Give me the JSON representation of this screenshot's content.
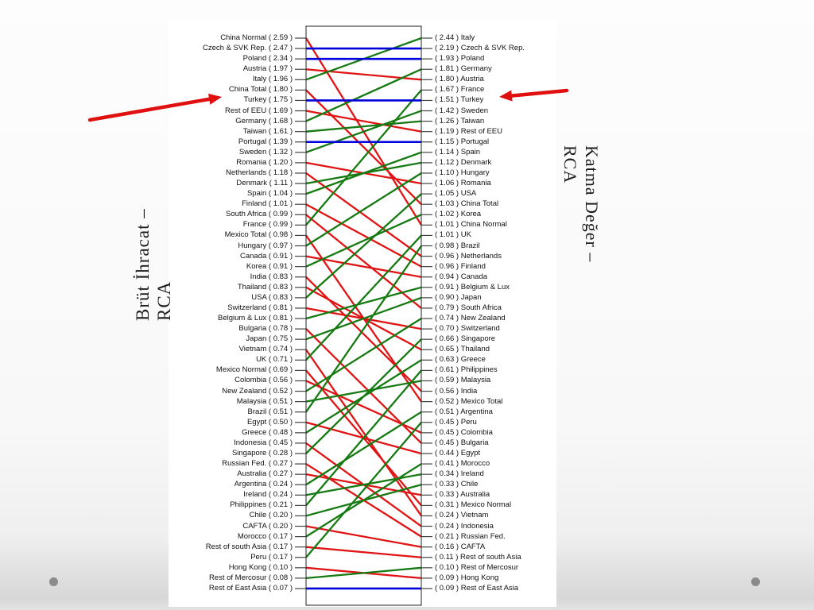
{
  "slide": {
    "left_axis_title": {
      "line1": "Brüt İhracat –",
      "line2": "RCA"
    },
    "right_axis_title": {
      "line1": "Katma Değer –",
      "line2": "RCA"
    }
  },
  "annotations": {
    "left_arrow_target": "Turkey ( 1.75 )",
    "right_arrow_target": "( 1.51 ) Turkey",
    "arrow_color": "#e01010"
  },
  "chart_data": {
    "type": "slopegraph",
    "left_axis_label": "Brüt İhracat – RCA",
    "right_axis_label": "Katma Değer – RCA",
    "left_label_format": "name ( value )",
    "right_label_format": "( value ) name",
    "colors": {
      "improved": "#157a12",
      "declined": "#e01414",
      "unchanged": "#0000dd"
    },
    "left": [
      {
        "name": "China Normal",
        "value": "2.59"
      },
      {
        "name": "Czech & SVK Rep.",
        "value": "2.47"
      },
      {
        "name": "Poland",
        "value": "2.34"
      },
      {
        "name": "Austria",
        "value": "1.97"
      },
      {
        "name": "Italy",
        "value": "1.96"
      },
      {
        "name": "China Total",
        "value": "1.80"
      },
      {
        "name": "Turkey",
        "value": "1.75"
      },
      {
        "name": "Rest of EEU",
        "value": "1.69"
      },
      {
        "name": "Germany",
        "value": "1.68"
      },
      {
        "name": "Taiwan",
        "value": "1.61"
      },
      {
        "name": "Portugal",
        "value": "1.39"
      },
      {
        "name": "Sweden",
        "value": "1.32"
      },
      {
        "name": "Romania",
        "value": "1.20"
      },
      {
        "name": "Netherlands",
        "value": "1.18"
      },
      {
        "name": "Denmark",
        "value": "1.11"
      },
      {
        "name": "Spain",
        "value": "1.04"
      },
      {
        "name": "Finland",
        "value": "1.01"
      },
      {
        "name": "South Africa",
        "value": "0.99"
      },
      {
        "name": "France",
        "value": "0.99"
      },
      {
        "name": "Mexico Total",
        "value": "0.98"
      },
      {
        "name": "Hungary",
        "value": "0.97"
      },
      {
        "name": "Canada",
        "value": "0.91"
      },
      {
        "name": "Korea",
        "value": "0.91"
      },
      {
        "name": "India",
        "value": "0.83"
      },
      {
        "name": "Thailand",
        "value": "0.83"
      },
      {
        "name": "USA",
        "value": "0.83"
      },
      {
        "name": "Switzerland",
        "value": "0.81"
      },
      {
        "name": "Belgium & Lux",
        "value": "0.81"
      },
      {
        "name": "Bulgaria",
        "value": "0.78"
      },
      {
        "name": "Japan",
        "value": "0.75"
      },
      {
        "name": "Vietnam",
        "value": "0.74"
      },
      {
        "name": "UK",
        "value": "0.71"
      },
      {
        "name": "Mexico Normal",
        "value": "0.69"
      },
      {
        "name": "Colombia",
        "value": "0.56"
      },
      {
        "name": "New Zealand",
        "value": "0.52"
      },
      {
        "name": "Malaysia",
        "value": "0.51"
      },
      {
        "name": "Brazil",
        "value": "0.51"
      },
      {
        "name": "Egypt",
        "value": "0.50"
      },
      {
        "name": "Greece",
        "value": "0.48"
      },
      {
        "name": "Indonesia",
        "value": "0.45"
      },
      {
        "name": "Singapore",
        "value": "0.28"
      },
      {
        "name": "Russian Fed.",
        "value": "0.27"
      },
      {
        "name": "Australia",
        "value": "0.27"
      },
      {
        "name": "Argentina",
        "value": "0.24"
      },
      {
        "name": "Ireland",
        "value": "0.24"
      },
      {
        "name": "Philippines",
        "value": "0.21"
      },
      {
        "name": "Chile",
        "value": "0.20"
      },
      {
        "name": "CAFTA",
        "value": "0.20"
      },
      {
        "name": "Morocco",
        "value": "0.17"
      },
      {
        "name": "Rest of south Asia",
        "value": "0.17"
      },
      {
        "name": "Peru",
        "value": "0.17"
      },
      {
        "name": "Hong Kong",
        "value": "0.10"
      },
      {
        "name": "Rest of Mercosur",
        "value": "0.08"
      },
      {
        "name": "Rest of East Asia",
        "value": "0.07"
      }
    ],
    "right": [
      {
        "name": "Italy",
        "value": "2.44"
      },
      {
        "name": "Czech & SVK Rep.",
        "value": "2.19"
      },
      {
        "name": "Poland",
        "value": "1.93"
      },
      {
        "name": "Germany",
        "value": "1.81"
      },
      {
        "name": "Austria",
        "value": "1.80"
      },
      {
        "name": "France",
        "value": "1.67"
      },
      {
        "name": "Turkey",
        "value": "1.51"
      },
      {
        "name": "Sweden",
        "value": "1.42"
      },
      {
        "name": "Taiwan",
        "value": "1.26"
      },
      {
        "name": "Rest of EEU",
        "value": "1.19"
      },
      {
        "name": "Portugal",
        "value": "1.15"
      },
      {
        "name": "Spain",
        "value": "1.14"
      },
      {
        "name": "Denmark",
        "value": "1.12"
      },
      {
        "name": "Hungary",
        "value": "1.10"
      },
      {
        "name": "Romania",
        "value": "1.06"
      },
      {
        "name": "USA",
        "value": "1.05"
      },
      {
        "name": "China Total",
        "value": "1.03"
      },
      {
        "name": "Korea",
        "value": "1.02"
      },
      {
        "name": "China Normal",
        "value": "1.01"
      },
      {
        "name": "UK",
        "value": "1.01"
      },
      {
        "name": "Brazil",
        "value": "0.98"
      },
      {
        "name": "Netherlands",
        "value": "0.96"
      },
      {
        "name": "Finland",
        "value": "0.96"
      },
      {
        "name": "Canada",
        "value": "0.94"
      },
      {
        "name": "Belgium & Lux",
        "value": "0.91"
      },
      {
        "name": "Japan",
        "value": "0.90"
      },
      {
        "name": "South Africa",
        "value": "0.79"
      },
      {
        "name": "New Zealand",
        "value": "0.74"
      },
      {
        "name": "Switzerland",
        "value": "0.70"
      },
      {
        "name": "Singapore",
        "value": "0.66"
      },
      {
        "name": "Thailand",
        "value": "0.65"
      },
      {
        "name": "Greece",
        "value": "0.63"
      },
      {
        "name": "Philippines",
        "value": "0.61"
      },
      {
        "name": "Malaysia",
        "value": "0.59"
      },
      {
        "name": "India",
        "value": "0.56"
      },
      {
        "name": "Mexico Total",
        "value": "0.52"
      },
      {
        "name": "Argentina",
        "value": "0.51"
      },
      {
        "name": "Peru",
        "value": "0.45"
      },
      {
        "name": "Colombia",
        "value": "0.45"
      },
      {
        "name": "Bulgaria",
        "value": "0.45"
      },
      {
        "name": "Egypt",
        "value": "0.44"
      },
      {
        "name": "Morocco",
        "value": "0.41"
      },
      {
        "name": "Ireland",
        "value": "0.34"
      },
      {
        "name": "Chile",
        "value": "0.33"
      },
      {
        "name": "Australia",
        "value": "0.33"
      },
      {
        "name": "Mexico Normal",
        "value": "0.31"
      },
      {
        "name": "Vietnam",
        "value": "0.24"
      },
      {
        "name": "Indonesia",
        "value": "0.24"
      },
      {
        "name": "Russian Fed.",
        "value": "0.21"
      },
      {
        "name": "CAFTA",
        "value": "0.16"
      },
      {
        "name": "Rest of south Asia",
        "value": "0.11"
      },
      {
        "name": "Rest of Mercosur",
        "value": "0.10"
      },
      {
        "name": "Hong Kong",
        "value": "0.09"
      },
      {
        "name": "Rest of East Asia",
        "value": "0.09"
      }
    ]
  }
}
